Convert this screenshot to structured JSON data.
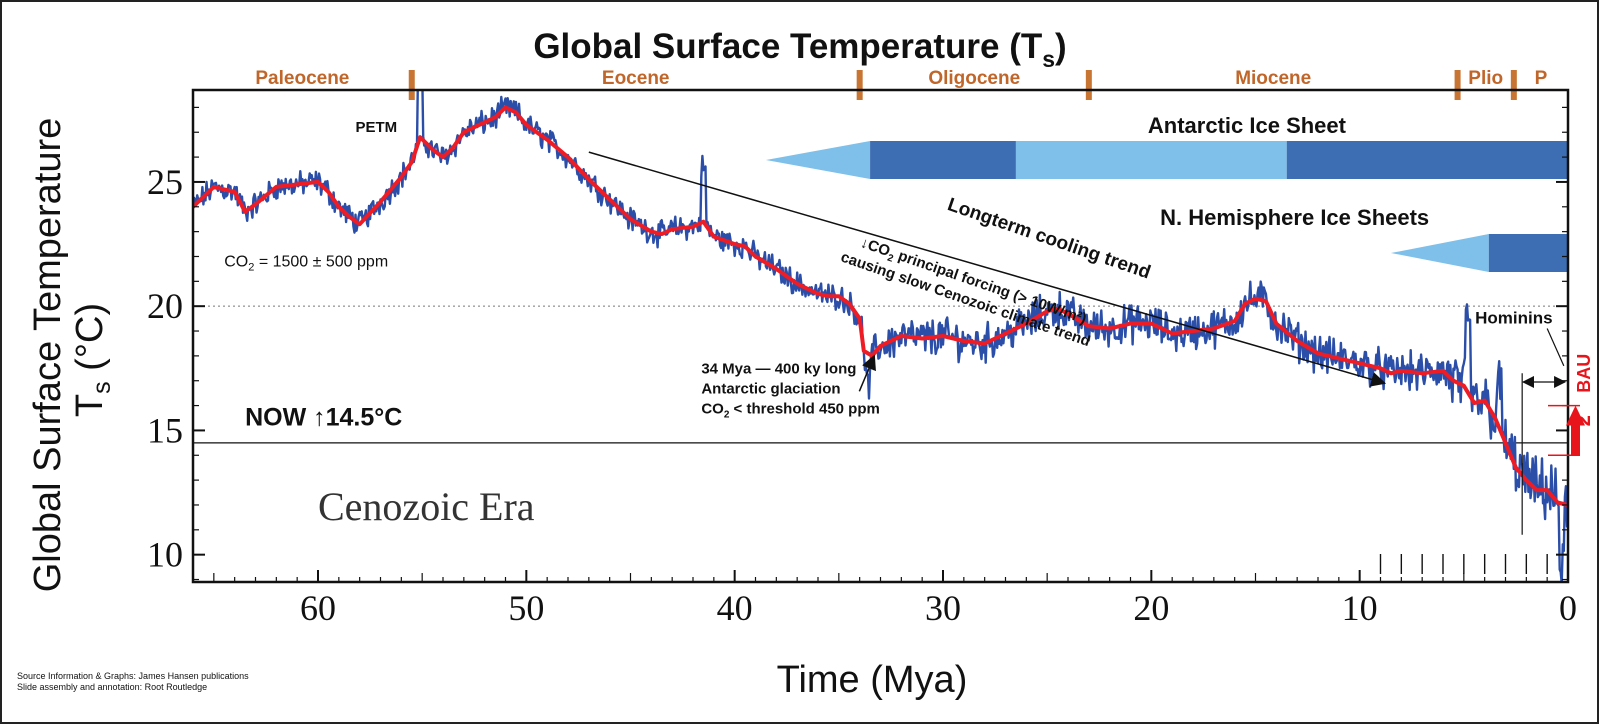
{
  "colors": {
    "raw_series": "#2b4ea8",
    "smooth_series": "#ee1c25",
    "epoch_text": "#c0662a",
    "epoch_tick": "#c87533",
    "ice_dark": "#3d6db3",
    "ice_light": "#7fc0ea",
    "annotation": "#111111",
    "bau": "#e8141c"
  },
  "chart_data": {
    "type": "line",
    "title_main": "Global Surface Temperature (T",
    "title_sub": "s",
    "title_close": ")",
    "xlabel": "Time (Mya)",
    "ylabel_line1": "Global Surface Temperature",
    "ylabel_line2_main": "T",
    "ylabel_line2_sub": "s",
    "ylabel_line2_rest": " (°C)",
    "xlim": [
      66,
      0
    ],
    "ylim": [
      8.9,
      28.7
    ],
    "x_ticks": [
      60,
      50,
      40,
      30,
      20,
      10,
      0
    ],
    "y_ticks": [
      10,
      15,
      20,
      25
    ],
    "reference_lines": [
      {
        "y": 20,
        "style": "dotted"
      },
      {
        "y": 14.5,
        "style": "solid"
      }
    ],
    "epochs": [
      {
        "name": "Paleocene",
        "start": 66,
        "end": 55.5
      },
      {
        "name": "Eocene",
        "start": 55.5,
        "end": 34
      },
      {
        "name": "Oligocene",
        "start": 34,
        "end": 23
      },
      {
        "name": "Miocene",
        "start": 23,
        "end": 5.3
      },
      {
        "name": "Plio",
        "start": 5.3,
        "end": 2.6
      },
      {
        "name": "P",
        "start": 2.6,
        "end": 0
      }
    ],
    "ice_sheets": [
      {
        "name": "Antarctic Ice Sheet",
        "x_start": 38.5,
        "x_end": 0,
        "segments": [
          {
            "from": 38.5,
            "to": 33.5,
            "kind": "taper"
          },
          {
            "from": 33.5,
            "to": 26.5,
            "kind": "dark"
          },
          {
            "from": 26.5,
            "to": 13.5,
            "kind": "light"
          },
          {
            "from": 13.5,
            "to": 0,
            "kind": "dark"
          }
        ]
      },
      {
        "name": "N. Hemisphere Ice Sheets",
        "x_start": 8.5,
        "x_end": 0,
        "segments": [
          {
            "from": 8.5,
            "to": 3.8,
            "kind": "taper"
          },
          {
            "from": 3.8,
            "to": 0,
            "kind": "dark"
          }
        ]
      }
    ],
    "series": [
      {
        "name": "Smoothed temperature",
        "color": "#ee1c25",
        "x": [
          66,
          65,
          64,
          63.5,
          63,
          62,
          61,
          60,
          59.5,
          59,
          58.5,
          58,
          57,
          56,
          55.5,
          55.1,
          54.5,
          54,
          53.5,
          53,
          52,
          51.5,
          51,
          50.5,
          50,
          49,
          48,
          47,
          46,
          45,
          44,
          43.5,
          43,
          42,
          41.5,
          41,
          40,
          39.5,
          39,
          38,
          37,
          36,
          35.5,
          35,
          34.5,
          34,
          33.8,
          33.4,
          33,
          32,
          31,
          30,
          29,
          28,
          27,
          26,
          25,
          24.5,
          24,
          23,
          22,
          21,
          20,
          19,
          18,
          17,
          16,
          15.5,
          15,
          14.5,
          14,
          13,
          12,
          11,
          10,
          9,
          8.5,
          8,
          7,
          6,
          5.5,
          5,
          4.5,
          4,
          3.5,
          3,
          2.5,
          2,
          1.5,
          1,
          0.5,
          0
        ],
        "y": [
          24,
          24.8,
          24.6,
          23.8,
          24.1,
          24.8,
          24.9,
          25,
          24.6,
          24,
          23.6,
          23.3,
          24.2,
          25.2,
          25.8,
          26.8,
          26.3,
          26,
          26.4,
          27,
          27.4,
          27.6,
          28,
          27.8,
          27.3,
          26.7,
          26,
          25.1,
          24.3,
          23.5,
          23,
          22.9,
          23.1,
          23.2,
          23.4,
          22.8,
          22.5,
          22.4,
          22,
          21.5,
          20.9,
          20.5,
          20.4,
          20.4,
          20.1,
          19.5,
          18.2,
          18,
          18.4,
          18.8,
          18.7,
          18.8,
          18.6,
          18.5,
          18.9,
          19.3,
          19.8,
          19.9,
          19.7,
          19.2,
          19.1,
          19.3,
          19.3,
          18.9,
          19,
          19.1,
          19.4,
          20.1,
          20.3,
          20.2,
          19.3,
          18.6,
          18.1,
          17.9,
          17.7,
          17.5,
          17.3,
          17.4,
          17.3,
          17.4,
          17,
          16.8,
          16.1,
          16.2,
          15.5,
          14.5,
          13.5,
          13,
          12.6,
          12.6,
          12.1,
          12
        ]
      },
      {
        "name": "Raw temperature",
        "color": "#2b4ea8",
        "style": "noisy band around smoothed record"
      }
    ],
    "annotations": [
      {
        "text": "PETM",
        "x": 58.2,
        "y": 27.0
      },
      {
        "text_main": "CO",
        "text_sub": "2",
        "text_rest": " = 1500 ± 500 ppm",
        "x": 64.5,
        "y": 21.6
      },
      {
        "text": "NOW ↑14.5°C",
        "x": 63.5,
        "y": 15.2
      },
      {
        "text": "Cenozoic Era",
        "x": 60,
        "y": 11.4
      },
      {
        "lines": [
          "34 Mya — 400 ky long",
          "Antarctic glaciation"
        ],
        "line3_main": "CO",
        "line3_sub": "2",
        "line3_rest": " < threshold 450 ppm",
        "x": 41.6,
        "y": 17.3
      },
      {
        "line1_pre": "↓CO",
        "line1_sub": "2",
        "line1_rest": " principal forcing (> 10W/m²)",
        "line2": "causing slow Cenozoic climate trend",
        "x": 34,
        "y": 22.4,
        "rotate": 19
      },
      {
        "text": "Longterm cooling trend",
        "x": 25,
        "y": 22.5,
        "rotate": 19
      },
      {
        "text": "Hominins",
        "x": 2.6,
        "y": 19.3
      },
      {
        "text": "BAU",
        "x": 0,
        "y": 17.3
      },
      {
        "text": "2",
        "unit": "°",
        "x": 0,
        "y": 15.5
      }
    ],
    "trend_arrow": {
      "from": [
        47,
        26.2
      ],
      "to": [
        8.8,
        16.9
      ]
    },
    "ticks_last_10my": [
      9,
      8,
      7,
      6,
      5,
      4,
      3,
      2,
      1
    ]
  },
  "credits": {
    "line1": "Source Information & Graphs: James Hansen publications",
    "line2": "Slide assembly and annotation: Root Routledge"
  }
}
